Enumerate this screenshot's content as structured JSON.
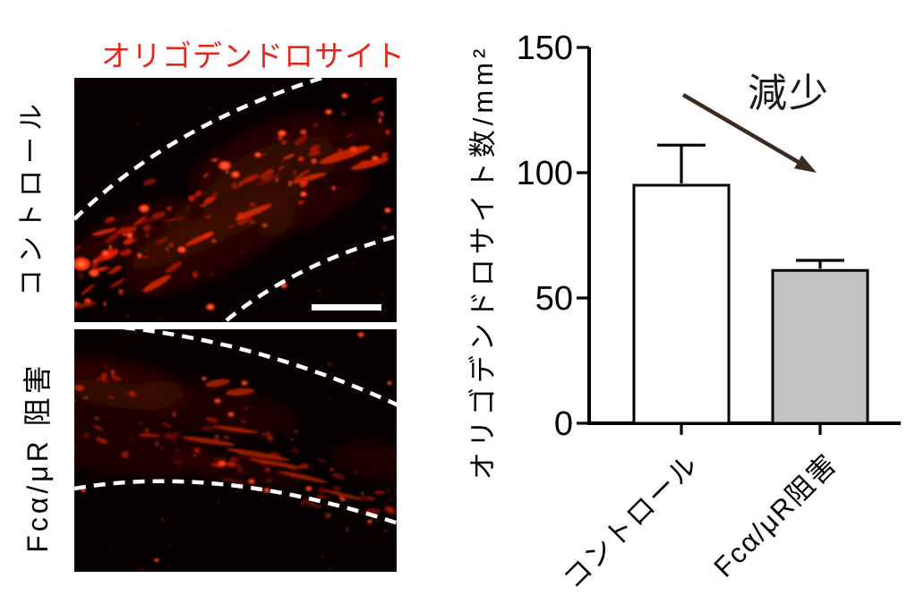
{
  "left_panel": {
    "title": "オリゴデンドロサイト",
    "title_color": "#e0291b",
    "fluorescence_color": "#ff2d08",
    "boundary_line_color": "#ffffff",
    "micrographs": [
      {
        "side_label": "コントロール"
      },
      {
        "side_label": "Fcα/μR 阻害"
      }
    ]
  },
  "chart_data": {
    "type": "bar",
    "title": "",
    "ylabel": "オリゴデンドロサイト数/mm²",
    "xlabel": "",
    "categories": [
      "コントロール",
      "Fcα/μR阻害"
    ],
    "values": [
      95,
      61
    ],
    "errors": [
      16,
      4
    ],
    "bar_fill_colors": [
      "#ffffff",
      "#c2c2c2"
    ],
    "bar_edge_color": "#000000",
    "yticks": [
      0,
      50,
      100,
      150
    ],
    "ylim": [
      0,
      150
    ],
    "grid": false,
    "legend": false,
    "annotation": {
      "text": "減少",
      "arrow": true,
      "arrow_color": "#3a2a20"
    }
  }
}
